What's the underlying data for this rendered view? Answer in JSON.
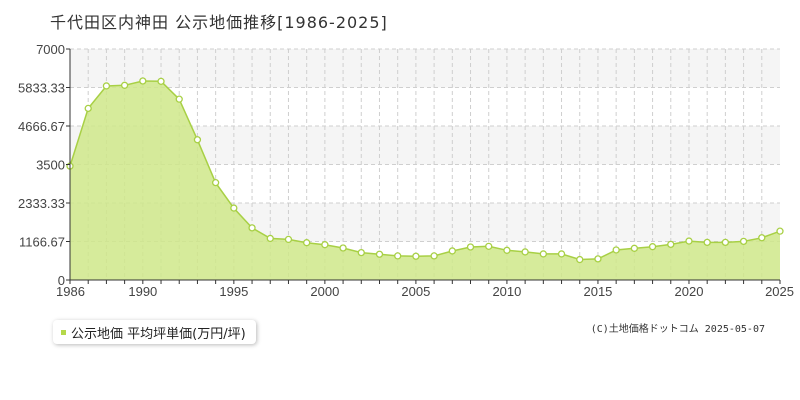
{
  "title": "千代田区内神田 公示地価推移[1986-2025]",
  "legend_label": "公示地価 平均坪単価(万円/坪)",
  "credit": "(C)土地価格ドットコム 2025-05-07",
  "colors": {
    "line": "#a8d045",
    "fill": "#cfe88a",
    "marker_fill": "#ffffff",
    "swatch": "#b5d84a",
    "grid": "#cfcfcf",
    "band": "#f5f5f5"
  },
  "chart_data": {
    "type": "area",
    "title": "千代田区内神田 公示地価推移[1986-2025]",
    "xlabel": "",
    "ylabel": "",
    "xlim": [
      1986,
      2025
    ],
    "ylim": [
      0,
      7000
    ],
    "y_ticks": [
      "0",
      "1166.67",
      "2333.33",
      "3500",
      "4666.67",
      "5833.33",
      "7000"
    ],
    "x_ticks": [
      "1986",
      "1990",
      "1995",
      "2000",
      "2005",
      "2010",
      "2015",
      "2020",
      "2025"
    ],
    "grid": true,
    "legend_position": "bottom-left",
    "series": [
      {
        "name": "公示地価 平均坪単価(万円/坪)",
        "x": [
          1986,
          1987,
          1988,
          1989,
          1990,
          1991,
          1992,
          1993,
          1994,
          1995,
          1996,
          1997,
          1998,
          1999,
          2000,
          2001,
          2002,
          2003,
          2004,
          2005,
          2006,
          2007,
          2008,
          2009,
          2010,
          2011,
          2012,
          2013,
          2014,
          2015,
          2016,
          2017,
          2018,
          2019,
          2020,
          2021,
          2022,
          2023,
          2024,
          2025
        ],
        "values": [
          3450,
          5200,
          5880,
          5900,
          6030,
          6020,
          5480,
          4250,
          2950,
          2180,
          1580,
          1260,
          1230,
          1130,
          1070,
          970,
          830,
          780,
          730,
          720,
          730,
          880,
          1000,
          1020,
          900,
          850,
          790,
          790,
          620,
          640,
          910,
          960,
          1010,
          1080,
          1180,
          1140,
          1140,
          1170,
          1280,
          1480
        ]
      }
    ]
  }
}
